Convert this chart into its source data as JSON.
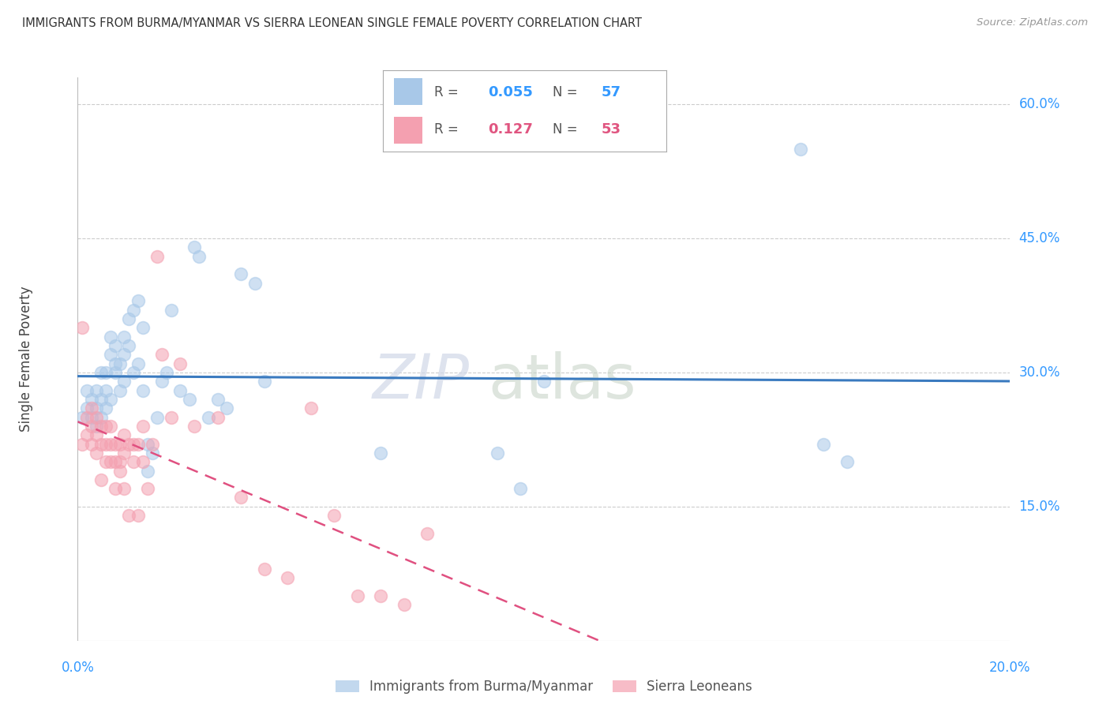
{
  "title": "IMMIGRANTS FROM BURMA/MYANMAR VS SIERRA LEONEAN SINGLE FEMALE POVERTY CORRELATION CHART",
  "source": "Source: ZipAtlas.com",
  "ylabel": "Single Female Poverty",
  "xlim": [
    0.0,
    0.2
  ],
  "ylim": [
    0.0,
    0.63
  ],
  "legend_label1": "Immigrants from Burma/Myanmar",
  "legend_label2": "Sierra Leoneans",
  "scatter_color1": "#a8c8e8",
  "scatter_color2": "#f4a0b0",
  "line_color1": "#3a7abf",
  "line_color2": "#e05080",
  "watermark": "ZIPatlas",
  "blue_x": [
    0.001,
    0.002,
    0.002,
    0.003,
    0.003,
    0.004,
    0.004,
    0.004,
    0.005,
    0.005,
    0.005,
    0.006,
    0.006,
    0.006,
    0.007,
    0.007,
    0.007,
    0.008,
    0.008,
    0.008,
    0.009,
    0.009,
    0.01,
    0.01,
    0.01,
    0.011,
    0.011,
    0.012,
    0.012,
    0.013,
    0.013,
    0.014,
    0.014,
    0.015,
    0.015,
    0.016,
    0.017,
    0.018,
    0.019,
    0.02,
    0.022,
    0.024,
    0.025,
    0.026,
    0.028,
    0.03,
    0.032,
    0.035,
    0.038,
    0.04,
    0.065,
    0.09,
    0.095,
    0.1,
    0.155,
    0.16,
    0.165
  ],
  "blue_y": [
    0.25,
    0.26,
    0.28,
    0.25,
    0.27,
    0.24,
    0.26,
    0.28,
    0.25,
    0.27,
    0.3,
    0.26,
    0.28,
    0.3,
    0.32,
    0.34,
    0.27,
    0.3,
    0.31,
    0.33,
    0.28,
    0.31,
    0.29,
    0.32,
    0.34,
    0.33,
    0.36,
    0.3,
    0.37,
    0.31,
    0.38,
    0.28,
    0.35,
    0.22,
    0.19,
    0.21,
    0.25,
    0.29,
    0.3,
    0.37,
    0.28,
    0.27,
    0.44,
    0.43,
    0.25,
    0.27,
    0.26,
    0.41,
    0.4,
    0.29,
    0.21,
    0.21,
    0.17,
    0.29,
    0.55,
    0.22,
    0.2
  ],
  "pink_x": [
    0.001,
    0.001,
    0.002,
    0.002,
    0.003,
    0.003,
    0.003,
    0.004,
    0.004,
    0.004,
    0.005,
    0.005,
    0.005,
    0.006,
    0.006,
    0.006,
    0.007,
    0.007,
    0.007,
    0.008,
    0.008,
    0.008,
    0.009,
    0.009,
    0.009,
    0.01,
    0.01,
    0.01,
    0.011,
    0.011,
    0.012,
    0.012,
    0.013,
    0.013,
    0.014,
    0.014,
    0.015,
    0.016,
    0.017,
    0.018,
    0.02,
    0.022,
    0.025,
    0.03,
    0.035,
    0.04,
    0.045,
    0.05,
    0.055,
    0.06,
    0.065,
    0.07,
    0.075
  ],
  "pink_y": [
    0.22,
    0.35,
    0.23,
    0.25,
    0.22,
    0.24,
    0.26,
    0.21,
    0.23,
    0.25,
    0.22,
    0.24,
    0.18,
    0.2,
    0.22,
    0.24,
    0.2,
    0.22,
    0.24,
    0.2,
    0.22,
    0.17,
    0.2,
    0.22,
    0.19,
    0.21,
    0.23,
    0.17,
    0.22,
    0.14,
    0.2,
    0.22,
    0.14,
    0.22,
    0.2,
    0.24,
    0.17,
    0.22,
    0.43,
    0.32,
    0.25,
    0.31,
    0.24,
    0.25,
    0.16,
    0.08,
    0.07,
    0.26,
    0.14,
    0.05,
    0.05,
    0.04,
    0.12
  ],
  "ytick_vals": [
    0.15,
    0.3,
    0.45,
    0.6
  ],
  "ytick_labels": [
    "15.0%",
    "30.0%",
    "45.0%",
    "60.0%"
  ],
  "xtick_vals": [
    0.0,
    0.2
  ],
  "xtick_labels": [
    "0.0%",
    "20.0%"
  ],
  "legend_r1": "R =",
  "legend_v1": "0.055",
  "legend_n1_label": "N =",
  "legend_n1_val": "57",
  "legend_r2": "R =",
  "legend_v2": "0.127",
  "legend_n2_label": "N =",
  "legend_n2_val": "53"
}
